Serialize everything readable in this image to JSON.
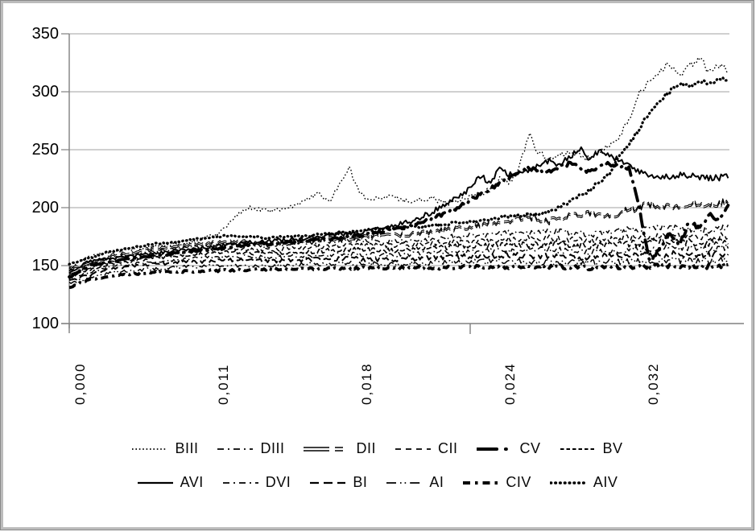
{
  "chart_data": {
    "type": "line",
    "title": "",
    "xlabel": "",
    "ylabel": "",
    "ylim": [
      100,
      350
    ],
    "ytick_labels": [
      "350",
      "300",
      "250",
      "200",
      "150",
      "100"
    ],
    "xtick_labels": [
      "0,000",
      "0,011",
      "0,018",
      "0,024",
      "0,032"
    ],
    "x_range": [
      0,
      0.033
    ],
    "grid": "horizontal",
    "legend_position": "bottom-two-rows",
    "line_color": "#000000",
    "grid_color": "#b3b3b3",
    "axis_color": "#808080",
    "series": [
      {
        "name": "BIII",
        "style": "fine-dot",
        "points": [
          [
            0,
            148
          ],
          [
            0.001,
            158
          ],
          [
            0.002,
            162
          ],
          [
            0.004,
            166
          ],
          [
            0.006,
            170
          ],
          [
            0.0075,
            178
          ],
          [
            0.0085,
            196
          ],
          [
            0.009,
            200
          ],
          [
            0.01,
            197
          ],
          [
            0.011,
            200
          ],
          [
            0.012,
            208
          ],
          [
            0.0125,
            213
          ],
          [
            0.013,
            204
          ],
          [
            0.014,
            235
          ],
          [
            0.0145,
            212
          ],
          [
            0.015,
            207
          ],
          [
            0.016,
            210
          ],
          [
            0.017,
            205
          ],
          [
            0.018,
            208
          ],
          [
            0.019,
            203
          ],
          [
            0.02,
            210
          ],
          [
            0.021,
            215
          ],
          [
            0.0215,
            225
          ],
          [
            0.022,
            222
          ],
          [
            0.0225,
            235
          ],
          [
            0.023,
            265
          ],
          [
            0.0233,
            250
          ],
          [
            0.024,
            242
          ],
          [
            0.025,
            248
          ],
          [
            0.026,
            242
          ],
          [
            0.0265,
            250
          ],
          [
            0.027,
            252
          ],
          [
            0.0275,
            262
          ],
          [
            0.028,
            275
          ],
          [
            0.0285,
            300
          ],
          [
            0.029,
            308
          ],
          [
            0.0295,
            318
          ],
          [
            0.03,
            325
          ],
          [
            0.0305,
            312
          ],
          [
            0.031,
            322
          ],
          [
            0.0315,
            330
          ],
          [
            0.032,
            316
          ],
          [
            0.0325,
            322
          ],
          [
            0.033,
            318
          ]
        ]
      },
      {
        "name": "DIII",
        "style": "dash-dot",
        "points": [
          [
            0,
            145
          ],
          [
            0.002,
            156
          ],
          [
            0.004,
            162
          ],
          [
            0.006,
            166
          ],
          [
            0.008,
            169
          ],
          [
            0.01,
            167
          ],
          [
            0.012,
            170
          ],
          [
            0.014,
            172
          ],
          [
            0.016,
            171
          ],
          [
            0.018,
            173
          ],
          [
            0.02,
            176
          ],
          [
            0.022,
            178
          ],
          [
            0.024,
            180
          ],
          [
            0.026,
            177
          ],
          [
            0.028,
            181
          ],
          [
            0.03,
            183
          ],
          [
            0.032,
            181
          ],
          [
            0.033,
            183
          ]
        ]
      },
      {
        "name": "DII",
        "style": "double-dash",
        "points": [
          [
            0,
            147
          ],
          [
            0.002,
            158
          ],
          [
            0.004,
            164
          ],
          [
            0.006,
            168
          ],
          [
            0.008,
            171
          ],
          [
            0.01,
            169
          ],
          [
            0.012,
            172
          ],
          [
            0.014,
            174
          ],
          [
            0.016,
            176
          ],
          [
            0.018,
            179
          ],
          [
            0.02,
            183
          ],
          [
            0.021,
            186
          ],
          [
            0.022,
            189
          ],
          [
            0.023,
            192
          ],
          [
            0.024,
            188
          ],
          [
            0.025,
            193
          ],
          [
            0.026,
            196
          ],
          [
            0.027,
            193
          ],
          [
            0.028,
            198
          ],
          [
            0.029,
            203
          ],
          [
            0.03,
            200
          ],
          [
            0.031,
            204
          ],
          [
            0.032,
            202
          ],
          [
            0.033,
            205
          ]
        ]
      },
      {
        "name": "CII",
        "style": "dash",
        "points": [
          [
            0,
            143
          ],
          [
            0.002,
            153
          ],
          [
            0.004,
            158
          ],
          [
            0.006,
            162
          ],
          [
            0.008,
            165
          ],
          [
            0.01,
            163
          ],
          [
            0.012,
            166
          ],
          [
            0.014,
            168
          ],
          [
            0.016,
            167
          ],
          [
            0.018,
            169
          ],
          [
            0.02,
            171
          ],
          [
            0.022,
            173
          ],
          [
            0.024,
            174
          ],
          [
            0.026,
            171
          ],
          [
            0.028,
            174
          ],
          [
            0.03,
            176
          ],
          [
            0.032,
            174
          ],
          [
            0.033,
            176
          ]
        ]
      },
      {
        "name": "CV",
        "style": "thick-dash-dot",
        "points": [
          [
            0,
            140
          ],
          [
            0.001,
            150
          ],
          [
            0.003,
            156
          ],
          [
            0.005,
            160
          ],
          [
            0.007,
            164
          ],
          [
            0.009,
            168
          ],
          [
            0.011,
            170
          ],
          [
            0.013,
            173
          ],
          [
            0.015,
            177
          ],
          [
            0.017,
            184
          ],
          [
            0.019,
            196
          ],
          [
            0.02,
            206
          ],
          [
            0.021,
            216
          ],
          [
            0.022,
            226
          ],
          [
            0.023,
            234
          ],
          [
            0.024,
            231
          ],
          [
            0.025,
            238
          ],
          [
            0.026,
            231
          ],
          [
            0.027,
            238
          ],
          [
            0.028,
            234
          ],
          [
            0.0285,
            200
          ],
          [
            0.029,
            152
          ],
          [
            0.0295,
            164
          ],
          [
            0.03,
            178
          ],
          [
            0.0305,
            168
          ],
          [
            0.031,
            188
          ],
          [
            0.0315,
            182
          ],
          [
            0.032,
            194
          ],
          [
            0.0325,
            189
          ],
          [
            0.033,
            202
          ]
        ]
      },
      {
        "name": "BV",
        "style": "dense-dash",
        "points": [
          [
            0,
            141
          ],
          [
            0.002,
            151
          ],
          [
            0.004,
            156
          ],
          [
            0.006,
            159
          ],
          [
            0.008,
            162
          ],
          [
            0.01,
            160
          ],
          [
            0.012,
            162
          ],
          [
            0.014,
            164
          ],
          [
            0.016,
            163
          ],
          [
            0.018,
            165
          ],
          [
            0.02,
            167
          ],
          [
            0.022,
            168
          ],
          [
            0.024,
            169
          ],
          [
            0.026,
            167
          ],
          [
            0.028,
            169
          ],
          [
            0.03,
            171
          ],
          [
            0.032,
            169
          ],
          [
            0.033,
            171
          ]
        ]
      },
      {
        "name": "AVI",
        "style": "solid",
        "points": [
          [
            0,
            144
          ],
          [
            0.001,
            154
          ],
          [
            0.003,
            158
          ],
          [
            0.005,
            162
          ],
          [
            0.007,
            166
          ],
          [
            0.009,
            170
          ],
          [
            0.011,
            172
          ],
          [
            0.013,
            176
          ],
          [
            0.015,
            180
          ],
          [
            0.017,
            188
          ],
          [
            0.018,
            195
          ],
          [
            0.019,
            205
          ],
          [
            0.02,
            216
          ],
          [
            0.0205,
            228
          ],
          [
            0.021,
            222
          ],
          [
            0.0215,
            233
          ],
          [
            0.022,
            228
          ],
          [
            0.023,
            233
          ],
          [
            0.024,
            240
          ],
          [
            0.0245,
            236
          ],
          [
            0.025,
            244
          ],
          [
            0.0255,
            251
          ],
          [
            0.026,
            242
          ],
          [
            0.0265,
            248
          ],
          [
            0.027,
            246
          ],
          [
            0.0275,
            240
          ],
          [
            0.028,
            237
          ],
          [
            0.0285,
            231
          ],
          [
            0.029,
            227
          ],
          [
            0.03,
            226
          ],
          [
            0.031,
            229
          ],
          [
            0.032,
            225
          ],
          [
            0.033,
            227
          ]
        ]
      },
      {
        "name": "DVI",
        "style": "dash-dot",
        "points": [
          [
            0,
            139
          ],
          [
            0.002,
            149
          ],
          [
            0.004,
            153
          ],
          [
            0.006,
            156
          ],
          [
            0.008,
            158
          ],
          [
            0.01,
            157
          ],
          [
            0.012,
            158
          ],
          [
            0.014,
            160
          ],
          [
            0.016,
            159
          ],
          [
            0.018,
            161
          ],
          [
            0.02,
            162
          ],
          [
            0.022,
            163
          ],
          [
            0.024,
            164
          ],
          [
            0.026,
            162
          ],
          [
            0.028,
            164
          ],
          [
            0.03,
            165
          ],
          [
            0.032,
            164
          ],
          [
            0.033,
            166
          ]
        ]
      },
      {
        "name": "BI",
        "style": "long-dash",
        "points": [
          [
            0,
            137
          ],
          [
            0.002,
            147
          ],
          [
            0.004,
            151
          ],
          [
            0.006,
            153
          ],
          [
            0.008,
            155
          ],
          [
            0.01,
            154
          ],
          [
            0.012,
            155
          ],
          [
            0.014,
            156
          ],
          [
            0.016,
            155
          ],
          [
            0.018,
            157
          ],
          [
            0.02,
            158
          ],
          [
            0.022,
            159
          ],
          [
            0.024,
            158
          ],
          [
            0.026,
            157
          ],
          [
            0.028,
            159
          ],
          [
            0.03,
            160
          ],
          [
            0.032,
            159
          ],
          [
            0.033,
            161
          ]
        ]
      },
      {
        "name": "AI",
        "style": "dash-dot-dot",
        "points": [
          [
            0,
            135
          ],
          [
            0.002,
            144
          ],
          [
            0.004,
            147
          ],
          [
            0.006,
            149
          ],
          [
            0.008,
            150
          ],
          [
            0.01,
            150
          ],
          [
            0.012,
            151
          ],
          [
            0.014,
            152
          ],
          [
            0.016,
            151
          ],
          [
            0.018,
            152
          ],
          [
            0.02,
            153
          ],
          [
            0.022,
            154
          ],
          [
            0.024,
            153
          ],
          [
            0.026,
            152
          ],
          [
            0.028,
            154
          ],
          [
            0.03,
            155
          ],
          [
            0.032,
            154
          ],
          [
            0.033,
            156
          ]
        ]
      },
      {
        "name": "CIV",
        "style": "thick-dash",
        "points": [
          [
            0,
            131
          ],
          [
            0.001,
            138
          ],
          [
            0.002,
            141
          ],
          [
            0.004,
            144
          ],
          [
            0.006,
            145
          ],
          [
            0.008,
            146
          ],
          [
            0.01,
            147
          ],
          [
            0.012,
            147
          ],
          [
            0.014,
            148
          ],
          [
            0.016,
            148
          ],
          [
            0.018,
            148
          ],
          [
            0.02,
            149
          ],
          [
            0.022,
            149
          ],
          [
            0.024,
            149
          ],
          [
            0.026,
            148
          ],
          [
            0.028,
            149
          ],
          [
            0.03,
            150
          ],
          [
            0.032,
            149
          ],
          [
            0.033,
            151
          ]
        ]
      },
      {
        "name": "AIV",
        "style": "thick-dot",
        "points": [
          [
            0,
            151
          ],
          [
            0.002,
            162
          ],
          [
            0.004,
            168
          ],
          [
            0.006,
            172
          ],
          [
            0.008,
            176
          ],
          [
            0.01,
            174
          ],
          [
            0.012,
            176
          ],
          [
            0.014,
            179
          ],
          [
            0.016,
            182
          ],
          [
            0.018,
            184
          ],
          [
            0.02,
            188
          ],
          [
            0.022,
            192
          ],
          [
            0.024,
            196
          ],
          [
            0.025,
            205
          ],
          [
            0.026,
            215
          ],
          [
            0.027,
            230
          ],
          [
            0.0275,
            245
          ],
          [
            0.028,
            255
          ],
          [
            0.0285,
            268
          ],
          [
            0.029,
            282
          ],
          [
            0.0295,
            292
          ],
          [
            0.03,
            300
          ],
          [
            0.0305,
            308
          ],
          [
            0.031,
            304
          ],
          [
            0.0315,
            310
          ],
          [
            0.032,
            306
          ],
          [
            0.0325,
            312
          ],
          [
            0.033,
            308
          ]
        ]
      }
    ],
    "legend_rows": [
      [
        "BIII",
        "DIII",
        "DII",
        "CII",
        "CV",
        "BV"
      ],
      [
        "AVI",
        "DVI",
        "BI",
        "AI",
        "CIV",
        "AIV"
      ]
    ]
  }
}
